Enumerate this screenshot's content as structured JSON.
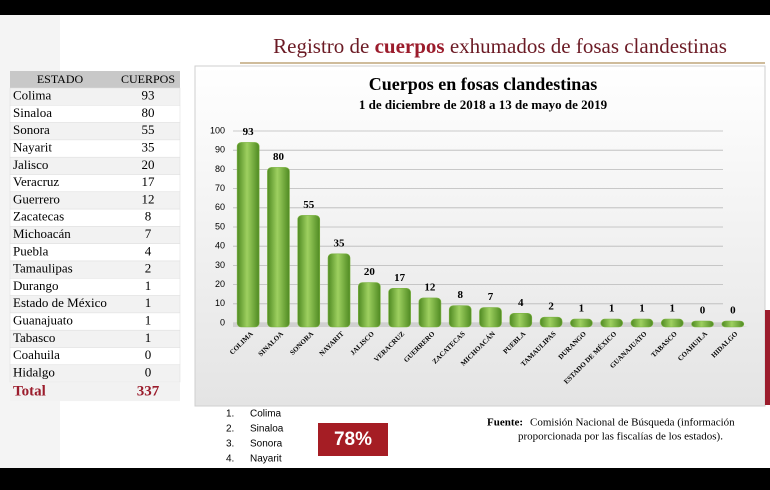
{
  "header": {
    "title_parts": [
      "Registro de",
      "cuerpos",
      "exhumados de fosas clandestinas"
    ]
  },
  "table": {
    "columns": [
      "ESTADO",
      "CUERPOS"
    ],
    "rows": [
      [
        "Colima",
        93
      ],
      [
        "Sinaloa",
        80
      ],
      [
        "Sonora",
        55
      ],
      [
        "Nayarit",
        35
      ],
      [
        "Jalisco",
        20
      ],
      [
        "Veracruz",
        17
      ],
      [
        "Guerrero",
        12
      ],
      [
        "Zacatecas",
        8
      ],
      [
        "Michoacán",
        7
      ],
      [
        "Puebla",
        4
      ],
      [
        "Tamaulipas",
        2
      ],
      [
        "Durango",
        1
      ],
      [
        "Estado de México",
        1
      ],
      [
        "Guanajuato",
        1
      ],
      [
        "Tabasco",
        1
      ],
      [
        "Coahuila",
        0
      ],
      [
        "Hidalgo",
        0
      ]
    ],
    "total": [
      "Total",
      337
    ]
  },
  "chart_data": {
    "type": "bar",
    "title": "Cuerpos en fosas clandestinas",
    "subtitle": "1 de diciembre de 2018 a  13 de mayo de 2019",
    "categories": [
      "COLIMA",
      "SINALOA",
      "SONORA",
      "NAYARIT",
      "JALISCO",
      "VERACRUZ",
      "GUERRERO",
      "ZACATECAS",
      "MICHOACÁN",
      "PUEBLA",
      "TAMAULIPAS",
      "DURANGO",
      "ESTADO DE MÉXICO",
      "GUANAJUATO",
      "TABASCO",
      "COAHUILA",
      "HIDALGO"
    ],
    "values": [
      93,
      80,
      55,
      35,
      20,
      17,
      12,
      8,
      7,
      4,
      2,
      1,
      1,
      1,
      1,
      0,
      0
    ],
    "color": "#7cb342",
    "ylim": [
      0,
      100
    ],
    "yticks": [
      0,
      10,
      20,
      30,
      40,
      50,
      60,
      70,
      80,
      90,
      100
    ],
    "grid": true
  },
  "ranking": [
    "Colima",
    "Sinaloa",
    "Sonora",
    "Nayarit"
  ],
  "summary": {
    "percentage": "78%"
  },
  "source": {
    "label": "Fuente:",
    "text_lines": [
      "Comisión Nacional de Búsqueda (información",
      "proporcionada por las fiscalías de los estados)."
    ]
  }
}
